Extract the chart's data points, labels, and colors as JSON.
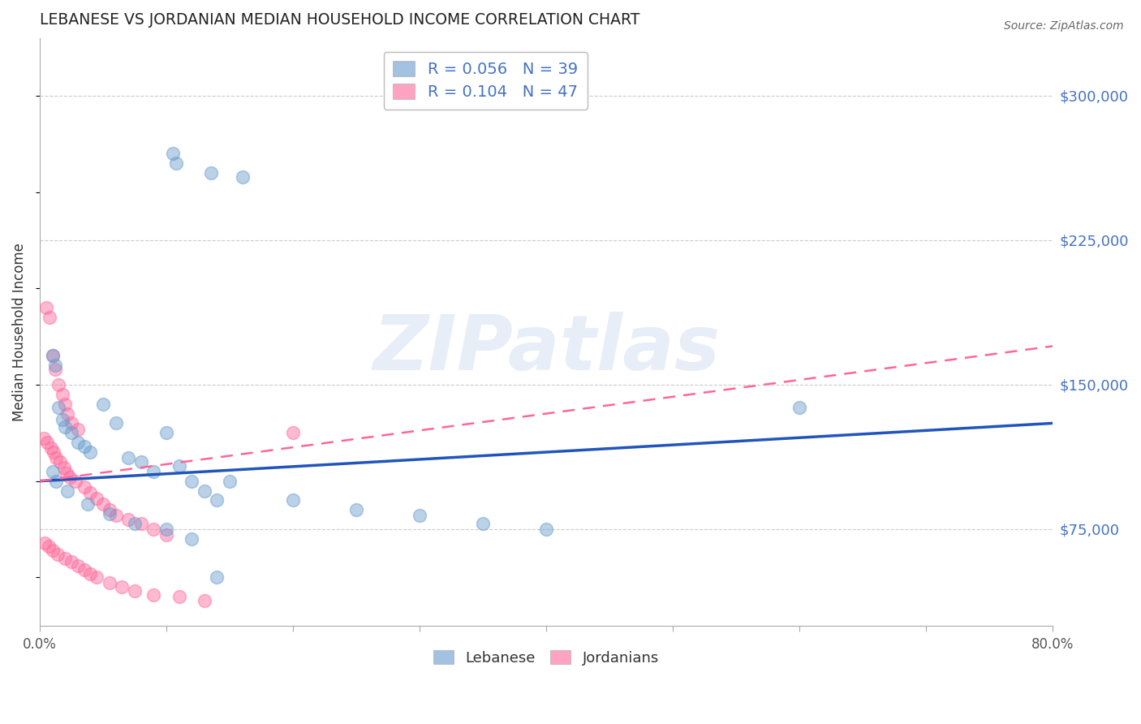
{
  "title": "LEBANESE VS JORDANIAN MEDIAN HOUSEHOLD INCOME CORRELATION CHART",
  "source": "Source: ZipAtlas.com",
  "ylabel": "Median Household Income",
  "x_tick_labels": [
    "0.0%",
    "",
    "",
    "",
    "",
    "",
    "",
    "",
    "80.0%"
  ],
  "x_ticks": [
    0.0,
    10.0,
    20.0,
    30.0,
    40.0,
    50.0,
    60.0,
    70.0,
    80.0
  ],
  "y_ticks": [
    75000,
    150000,
    225000,
    300000
  ],
  "y_tick_labels": [
    "$75,000",
    "$150,000",
    "$225,000",
    "$300,000"
  ],
  "xlim": [
    0,
    80
  ],
  "ylim": [
    25000,
    330000
  ],
  "lebanese_color": "#6699CC",
  "jordanian_color": "#FF6699",
  "lebanese_R": "0.056",
  "lebanese_N": "39",
  "jordanian_R": "0.104",
  "jordanian_N": "47",
  "watermark": "ZIPatlas",
  "leb_trend_x": [
    0,
    80
  ],
  "leb_trend_y": [
    100000,
    130000
  ],
  "jor_trend_x": [
    0,
    80
  ],
  "jor_trend_y": [
    100000,
    170000
  ],
  "lebanese_x": [
    10.5,
    10.8,
    13.5,
    16.0,
    1.0,
    1.2,
    1.5,
    1.8,
    2.0,
    2.5,
    3.0,
    3.5,
    4.0,
    5.0,
    6.0,
    7.0,
    8.0,
    9.0,
    10.0,
    11.0,
    12.0,
    13.0,
    14.0,
    15.0,
    20.0,
    25.0,
    30.0,
    35.0,
    40.0,
    60.0,
    1.0,
    1.3,
    2.2,
    3.8,
    5.5,
    7.5,
    10.0,
    12.0,
    14.0
  ],
  "lebanese_y": [
    270000,
    265000,
    260000,
    258000,
    165000,
    160000,
    138000,
    132000,
    128000,
    125000,
    120000,
    118000,
    115000,
    140000,
    130000,
    112000,
    110000,
    105000,
    125000,
    108000,
    100000,
    95000,
    90000,
    100000,
    90000,
    85000,
    82000,
    78000,
    75000,
    138000,
    105000,
    100000,
    95000,
    88000,
    83000,
    78000,
    75000,
    70000,
    50000
  ],
  "jordanian_x": [
    0.5,
    0.8,
    1.0,
    1.2,
    1.5,
    1.8,
    2.0,
    2.2,
    2.5,
    3.0,
    0.3,
    0.6,
    0.9,
    1.1,
    1.3,
    1.6,
    1.9,
    2.1,
    2.4,
    2.8,
    3.5,
    4.0,
    4.5,
    5.0,
    5.5,
    6.0,
    7.0,
    8.0,
    9.0,
    10.0,
    0.4,
    0.7,
    1.0,
    1.4,
    2.0,
    2.5,
    3.0,
    3.5,
    4.0,
    4.5,
    5.5,
    6.5,
    7.5,
    9.0,
    11.0,
    13.0,
    20.0
  ],
  "jordanian_y": [
    190000,
    185000,
    165000,
    158000,
    150000,
    145000,
    140000,
    135000,
    130000,
    127000,
    122000,
    120000,
    117000,
    115000,
    112000,
    110000,
    107000,
    104000,
    102000,
    100000,
    97000,
    94000,
    91000,
    88000,
    85000,
    82000,
    80000,
    78000,
    75000,
    72000,
    68000,
    66000,
    64000,
    62000,
    60000,
    58000,
    56000,
    54000,
    52000,
    50000,
    47000,
    45000,
    43000,
    41000,
    40000,
    38000,
    125000
  ]
}
